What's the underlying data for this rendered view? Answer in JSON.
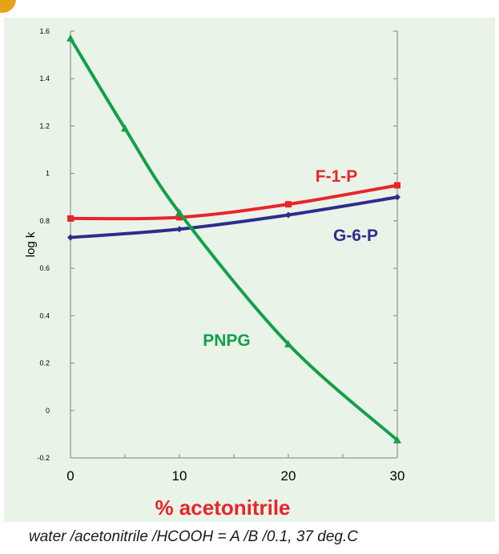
{
  "page": {
    "caption": "water /acetonitrile /HCOOH = A /B /0.1, 37 deg.C"
  },
  "chart_data": {
    "type": "line",
    "xlabel": "% acetonitrile",
    "ylabel": "log k",
    "xlim": [
      0,
      30
    ],
    "ylim": [
      -0.2,
      1.6
    ],
    "xticks": [
      0,
      10,
      20,
      30
    ],
    "yticks": [
      -0.2,
      0,
      0.2,
      0.4,
      0.6,
      0.8,
      1,
      1.2,
      1.4,
      1.6
    ],
    "ytick_labels": [
      "-0.2",
      "0",
      "0.2",
      "0.4",
      "0.6",
      "0.8",
      "1",
      "1.2",
      "1.4",
      "1.6"
    ],
    "grid": false,
    "series": [
      {
        "name": "F-1-P",
        "color": "#e8252b",
        "marker": "square",
        "x": [
          0,
          10,
          20,
          30
        ],
        "y": [
          0.81,
          0.815,
          0.87,
          0.95
        ]
      },
      {
        "name": "G-6-P",
        "color": "#2b2e8c",
        "marker": "diamond",
        "x": [
          0,
          10,
          20,
          30
        ],
        "y": [
          0.73,
          0.765,
          0.825,
          0.9
        ]
      },
      {
        "name": "PNPG",
        "color": "#12a04a",
        "marker": "triangle",
        "x": [
          0,
          5,
          10,
          20,
          30
        ],
        "y": [
          1.57,
          1.19,
          0.835,
          0.28,
          -0.125
        ]
      }
    ]
  }
}
